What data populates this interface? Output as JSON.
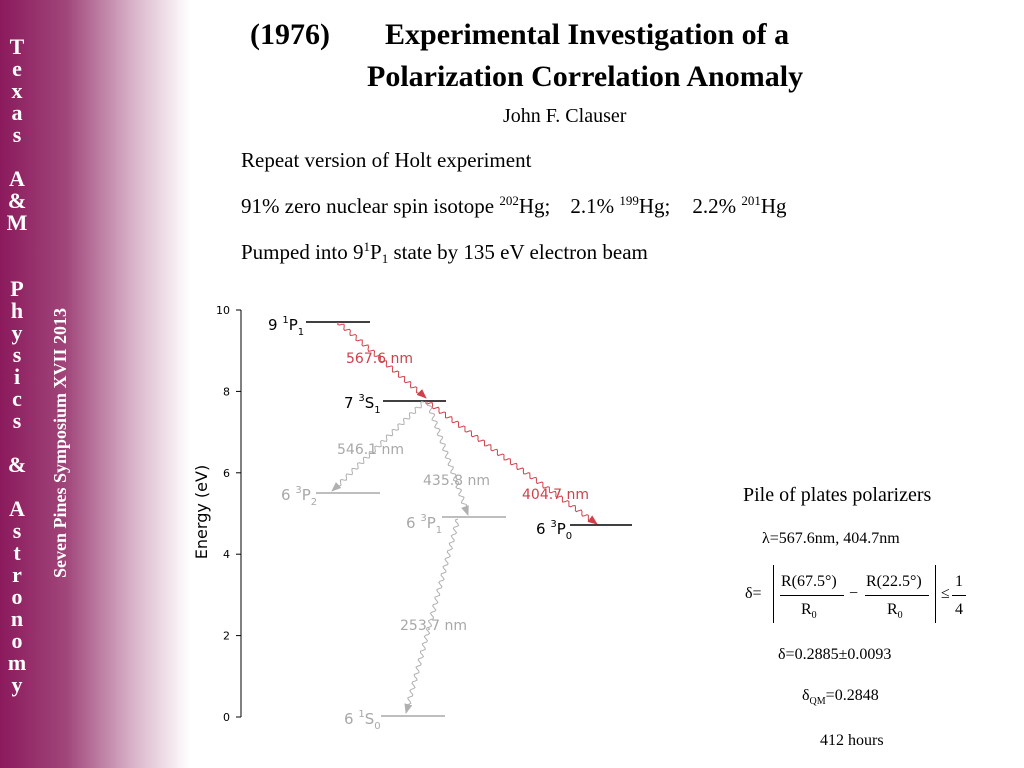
{
  "sidebar": {
    "letters": [
      "T",
      "e",
      "x",
      "a",
      "s",
      "",
      "A",
      "&",
      "M",
      "",
      "",
      "P",
      "h",
      "y",
      "s",
      "i",
      "c",
      "s",
      "",
      "&",
      "",
      "A",
      "s",
      "t",
      "r",
      "o",
      "n",
      "o",
      "m",
      "y"
    ],
    "rotated": "Seven Pines Symposium XVII  2013"
  },
  "header": {
    "year": "(1976)",
    "title_line1": "Experimental Investigation of a",
    "title_line2": "Polarization Correlation Anomaly",
    "author": "John F. Clauser"
  },
  "body": {
    "line1": "Repeat version of Holt experiment",
    "line2": {
      "a": "91% zero nuclear spin isotope ",
      "a_sup": "202",
      "a_el": "Hg;",
      "b": "2.1% ",
      "b_sup": "199",
      "b_el": "Hg;",
      "c": "2.2% ",
      "c_sup": "201",
      "c_el": "Hg"
    },
    "line3": {
      "pre": "Pumped into 9",
      "sup": "1",
      "mid": "P",
      "sub": "1",
      "post": " state by 135 eV electron beam"
    }
  },
  "diagram": {
    "ylabel": "Energy  (eV)",
    "yticks": [
      "10",
      "8",
      "6",
      "4",
      "2",
      "0"
    ],
    "levels": {
      "9P1": {
        "pre": "9 ",
        "sup": "1",
        "L": "P",
        "sub": "1"
      },
      "7S1": {
        "pre": "7 ",
        "sup": "3",
        "L": "S",
        "sub": "1"
      },
      "6P2": {
        "pre": "6 ",
        "sup": "3",
        "L": "P",
        "sub": "2"
      },
      "6P1": {
        "pre": "6 ",
        "sup": "3",
        "L": "P",
        "sub": "1"
      },
      "6P0": {
        "pre": "6 ",
        "sup": "3",
        "L": "P",
        "sub": "0"
      },
      "6S0": {
        "pre": "6 ",
        "sup": "1",
        "L": "S",
        "sub": "0"
      }
    },
    "transitions": {
      "t5676": "567.6 nm",
      "t5461": "546.1 nm",
      "t4358": "435.8 nm",
      "t4047": "404.7 nm",
      "t2537": "253.7 nm"
    },
    "colors": {
      "active": "#d0404a",
      "inactive": "#b0b0b0",
      "level_dark": "#000000",
      "level_gray": "#a8a8a8"
    }
  },
  "right": {
    "heading": "Pile of plates polarizers",
    "wavelengths": "λ=567.6nm, 404.7nm",
    "delta_def": {
      "lhs": "δ=",
      "num1": "R(67.5°)",
      "den1": "R",
      "den1_sub": "0",
      "minus": "−",
      "num2": "R(22.5°)",
      "den2": "R",
      "den2_sub": "0",
      "leq": "≤",
      "frac_num": "1",
      "frac_den": "4"
    },
    "delta_value": "δ=0.2885±0.0093",
    "delta_qm": {
      "sym": "δ",
      "sub": "QM",
      "val": "=0.2848"
    },
    "hours": "412 hours"
  }
}
